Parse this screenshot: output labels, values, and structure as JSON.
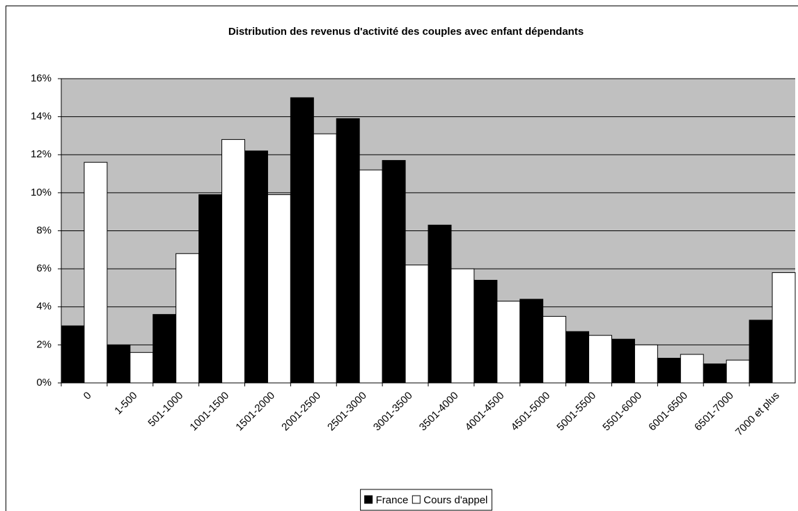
{
  "chart_data": {
    "type": "bar",
    "title": "Distribution des revenus d'activité des couples avec enfant dépendants",
    "categories": [
      "0",
      "1-500",
      "501-1000",
      "1001-1500",
      "1501-2000",
      "2001-2500",
      "2501-3000",
      "3001-3500",
      "3501-4000",
      "4001-4500",
      "4501-5000",
      "5001-5500",
      "5501-6000",
      "6001-6500",
      "6501-7000",
      "7000 et plus"
    ],
    "series": [
      {
        "name": "France",
        "color": "#000000",
        "values": [
          3.0,
          2.0,
          3.6,
          9.9,
          12.2,
          15.0,
          13.9,
          11.7,
          8.3,
          5.4,
          4.4,
          2.7,
          2.3,
          1.3,
          1.0,
          3.3
        ]
      },
      {
        "name": "Cours d'appel",
        "color": "#ffffff",
        "values": [
          11.6,
          1.6,
          6.8,
          12.8,
          9.9,
          13.1,
          11.2,
          6.2,
          6.0,
          4.3,
          3.5,
          2.5,
          2.0,
          1.5,
          1.2,
          5.8
        ]
      }
    ],
    "ylim": [
      0,
      16
    ],
    "yticks": [
      {
        "value": 0,
        "label": "0%"
      },
      {
        "value": 2,
        "label": "2%"
      },
      {
        "value": 4,
        "label": "4%"
      },
      {
        "value": 6,
        "label": "6%"
      },
      {
        "value": 8,
        "label": "8%"
      },
      {
        "value": 10,
        "label": "10%"
      },
      {
        "value": 12,
        "label": "12%"
      },
      {
        "value": 14,
        "label": "14%"
      },
      {
        "value": 16,
        "label": "16%"
      }
    ],
    "grid": true,
    "legend": "bottom",
    "plot_background": "#c0c0c0"
  }
}
